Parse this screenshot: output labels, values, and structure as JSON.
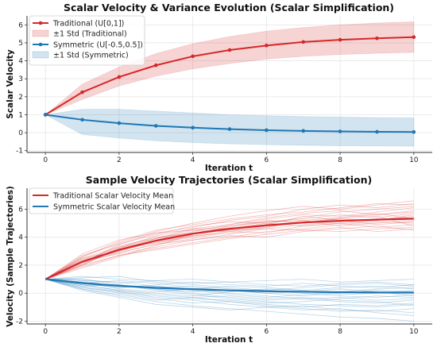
{
  "colors": {
    "traditional": "#d62728",
    "symmetric": "#1f77b4",
    "grid": "#e6e6e6",
    "axis": "#333333"
  },
  "chart_data": [
    {
      "type": "line",
      "title": "Scalar Velocity & Variance Evolution (Scalar Simplification)",
      "xlabel": "Iteration t",
      "ylabel": "Scalar Velocity",
      "xlim": [
        -0.5,
        10.5
      ],
      "ylim": [
        -1.1,
        6.5
      ],
      "xticks": [
        0,
        2,
        4,
        6,
        8,
        10
      ],
      "yticks": [
        -1,
        0,
        1,
        2,
        3,
        4,
        5,
        6
      ],
      "grid": true,
      "legend_position": "top-left",
      "x": [
        0,
        1,
        2,
        3,
        4,
        5,
        6,
        7,
        8,
        9,
        10
      ],
      "series": [
        {
          "name": "Traditional (U[0,1])",
          "color": "#d62728",
          "marker": "circle",
          "values": [
            1.0,
            2.25,
            3.1,
            3.75,
            4.25,
            4.6,
            4.85,
            5.05,
            5.17,
            5.25,
            5.32
          ]
        },
        {
          "name": "Symmetric (U[-0.5,0.5])",
          "color": "#1f77b4",
          "marker": "circle",
          "values": [
            1.0,
            0.72,
            0.53,
            0.38,
            0.28,
            0.2,
            0.14,
            0.1,
            0.07,
            0.05,
            0.04
          ]
        }
      ],
      "bands": [
        {
          "name": "±1 Std (Traditional)",
          "color": "#d62728",
          "lower": [
            1.0,
            1.85,
            2.6,
            3.15,
            3.55,
            3.85,
            4.1,
            4.25,
            4.35,
            4.42,
            4.47
          ],
          "upper": [
            1.0,
            2.7,
            3.65,
            4.4,
            4.95,
            5.35,
            5.65,
            5.85,
            6.0,
            6.1,
            6.17
          ]
        },
        {
          "name": "±1 Std (Symmetric)",
          "color": "#1f77b4",
          "lower": [
            1.0,
            -0.1,
            -0.3,
            -0.45,
            -0.55,
            -0.62,
            -0.67,
            -0.7,
            -0.73,
            -0.74,
            -0.75
          ],
          "upper": [
            1.0,
            1.3,
            1.3,
            1.2,
            1.1,
            1.0,
            0.95,
            0.9,
            0.87,
            0.84,
            0.82
          ]
        }
      ]
    },
    {
      "type": "line",
      "title": "Sample Velocity Trajectories (Scalar Simplification)",
      "xlabel": "Iteration t",
      "ylabel": "Velocity (Sample Trajectories)",
      "xlim": [
        -0.5,
        10.5
      ],
      "ylim": [
        -2.2,
        7.5
      ],
      "xticks": [
        0,
        2,
        4,
        6,
        8,
        10
      ],
      "yticks": [
        -2,
        0,
        2,
        4,
        6
      ],
      "grid": true,
      "legend_position": "top-left",
      "x": [
        0,
        1,
        2,
        3,
        4,
        5,
        6,
        7,
        8,
        9,
        10
      ],
      "series": [
        {
          "name": "Traditional Scalar Velocity Mean",
          "color": "#d62728",
          "values": [
            1.0,
            2.25,
            3.1,
            3.75,
            4.25,
            4.6,
            4.85,
            5.05,
            5.17,
            5.25,
            5.32
          ]
        },
        {
          "name": "Symmetric Scalar Velocity Mean",
          "color": "#1f77b4",
          "values": [
            1.0,
            0.72,
            0.53,
            0.38,
            0.28,
            0.2,
            0.14,
            0.1,
            0.07,
            0.05,
            0.04
          ]
        }
      ],
      "trajectories": {
        "traditional": [
          [
            1.0,
            2.0,
            3.2,
            4.1,
            4.6,
            4.9,
            5.3,
            5.6,
            5.5,
            5.8,
            6.1
          ],
          [
            1.0,
            2.4,
            2.9,
            3.5,
            3.9,
            4.4,
            4.3,
            4.8,
            5.0,
            4.7,
            4.9
          ],
          [
            1.0,
            2.6,
            3.6,
            4.4,
            5.0,
            5.5,
            5.9,
            6.2,
            6.0,
            6.3,
            6.6
          ],
          [
            1.0,
            1.9,
            2.7,
            3.2,
            3.6,
            4.0,
            4.4,
            4.6,
            4.9,
            5.1,
            5.0
          ],
          [
            1.0,
            2.2,
            3.4,
            3.9,
            4.5,
            4.8,
            5.2,
            5.0,
            5.4,
            5.6,
            5.8
          ],
          [
            1.0,
            2.5,
            3.0,
            3.7,
            4.1,
            4.3,
            4.7,
            5.1,
            5.3,
            5.2,
            5.5
          ],
          [
            1.0,
            2.1,
            3.1,
            3.6,
            4.0,
            4.5,
            4.6,
            4.5,
            4.7,
            4.4,
            4.6
          ],
          [
            1.0,
            2.7,
            3.5,
            4.2,
            4.8,
            5.1,
            5.0,
            5.4,
            5.8,
            6.0,
            6.2
          ],
          [
            1.0,
            2.3,
            2.8,
            3.3,
            3.8,
            4.2,
            4.6,
            4.9,
            5.1,
            5.3,
            5.4
          ],
          [
            1.0,
            2.0,
            3.3,
            4.0,
            4.3,
            4.7,
            5.1,
            5.3,
            5.6,
            5.4,
            5.7
          ],
          [
            1.0,
            2.4,
            3.2,
            3.9,
            4.6,
            4.6,
            4.9,
            5.5,
            5.2,
            4.9,
            5.1
          ],
          [
            1.0,
            2.2,
            2.9,
            3.5,
            3.8,
            4.1,
            4.0,
            4.4,
            4.6,
            4.8,
            4.5
          ],
          [
            1.0,
            2.6,
            3.7,
            4.5,
            4.9,
            5.3,
            5.6,
            5.8,
            6.1,
            6.4,
            6.3
          ],
          [
            1.0,
            1.8,
            2.6,
            3.4,
            4.2,
            4.8,
            5.1,
            5.2,
            4.8,
            5.0,
            5.2
          ],
          [
            1.0,
            2.3,
            3.0,
            3.8,
            4.4,
            4.9,
            5.4,
            5.7,
            5.9,
            5.6,
            5.9
          ],
          [
            1.0,
            2.1,
            3.5,
            4.3,
            4.5,
            4.4,
            4.8,
            5.0,
            5.3,
            5.5,
            4.8
          ],
          [
            1.0,
            2.5,
            3.3,
            3.6,
            4.1,
            4.6,
            5.0,
            4.8,
            5.0,
            5.2,
            5.6
          ],
          [
            1.0,
            2.0,
            2.7,
            3.1,
            3.5,
            3.9,
            4.2,
            4.5,
            4.4,
            4.6,
            4.7
          ],
          [
            1.0,
            2.8,
            3.8,
            4.3,
            4.7,
            5.2,
            5.5,
            6.0,
            6.3,
            6.1,
            6.4
          ],
          [
            1.0,
            2.2,
            3.1,
            3.9,
            4.3,
            4.5,
            4.7,
            5.2,
            5.4,
            5.7,
            5.3
          ]
        ],
        "symmetric": [
          [
            1.0,
            0.4,
            0.1,
            -0.3,
            -0.5,
            -0.8,
            -1.0,
            -1.2,
            -1.1,
            -1.4,
            -1.6
          ],
          [
            1.0,
            1.2,
            1.0,
            0.9,
            0.7,
            0.8,
            0.6,
            0.5,
            0.7,
            0.8,
            0.6
          ],
          [
            1.0,
            0.6,
            0.2,
            0.0,
            -0.2,
            0.1,
            0.3,
            0.2,
            -0.1,
            0.0,
            0.2
          ],
          [
            1.0,
            0.9,
            0.8,
            0.5,
            0.3,
            0.0,
            -0.2,
            -0.4,
            -0.3,
            -0.5,
            -0.4
          ],
          [
            1.0,
            0.3,
            -0.2,
            -0.6,
            -0.9,
            -1.1,
            -1.3,
            -1.5,
            -1.7,
            -1.8,
            -2.0
          ],
          [
            1.0,
            1.0,
            0.7,
            0.9,
            1.0,
            0.8,
            0.9,
            1.0,
            0.8,
            0.9,
            1.0
          ],
          [
            1.0,
            0.7,
            0.4,
            0.5,
            0.2,
            -0.1,
            -0.3,
            -0.1,
            0.1,
            0.3,
            0.4
          ],
          [
            1.0,
            0.5,
            0.6,
            0.2,
            -0.1,
            -0.4,
            -0.6,
            -0.8,
            -0.9,
            -1.0,
            -0.8
          ],
          [
            1.0,
            0.8,
            0.3,
            0.1,
            0.3,
            0.5,
            0.4,
            0.2,
            0.4,
            0.5,
            0.3
          ],
          [
            1.0,
            0.2,
            -0.3,
            -0.8,
            -1.0,
            -1.2,
            -1.0,
            -0.9,
            -1.2,
            -1.3,
            -1.1
          ],
          [
            1.0,
            1.1,
            1.2,
            0.8,
            0.6,
            0.4,
            0.2,
            0.0,
            -0.2,
            -0.3,
            -0.1
          ],
          [
            1.0,
            0.6,
            0.5,
            0.3,
            0.0,
            -0.3,
            -0.5,
            -0.4,
            -0.6,
            -0.7,
            -0.5
          ],
          [
            1.0,
            0.9,
            0.4,
            0.6,
            0.8,
            0.6,
            0.5,
            0.7,
            0.5,
            0.4,
            0.6
          ],
          [
            1.0,
            0.4,
            0.0,
            -0.4,
            -0.7,
            -0.6,
            -0.9,
            -1.1,
            -1.3,
            -1.2,
            -1.4
          ],
          [
            1.0,
            0.7,
            0.9,
            0.7,
            0.4,
            0.2,
            0.0,
            0.1,
            0.3,
            0.1,
            -0.2
          ],
          [
            1.0,
            0.5,
            0.1,
            -0.2,
            -0.4,
            -0.5,
            -0.7,
            -0.6,
            -0.4,
            -0.2,
            -0.3
          ],
          [
            1.0,
            1.0,
            0.6,
            0.3,
            0.1,
            0.2,
            0.0,
            -0.2,
            0.0,
            0.2,
            0.1
          ],
          [
            1.0,
            0.3,
            -0.1,
            -0.5,
            -0.3,
            -0.6,
            -0.8,
            -1.0,
            -0.8,
            -0.9,
            -0.7
          ],
          [
            1.0,
            0.8,
            0.5,
            0.4,
            0.5,
            0.3,
            0.2,
            0.4,
            0.6,
            0.7,
            0.5
          ],
          [
            1.0,
            0.6,
            0.2,
            -0.1,
            -0.3,
            -0.2,
            -0.4,
            -0.3,
            -0.5,
            -0.6,
            -0.9
          ]
        ]
      }
    }
  ]
}
